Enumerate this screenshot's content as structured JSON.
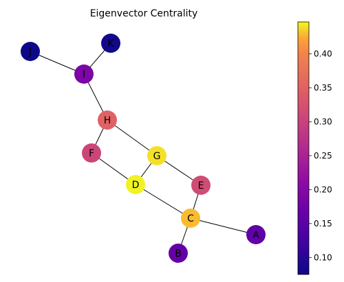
{
  "chart_data": {
    "type": "network",
    "title": "Eigenvector Centrality",
    "nodes": [
      {
        "id": "A",
        "centrality": 0.155
      },
      {
        "id": "B",
        "centrality": 0.16
      },
      {
        "id": "C",
        "centrality": 0.43
      },
      {
        "id": "D",
        "centrality": 0.445
      },
      {
        "id": "E",
        "centrality": 0.315
      },
      {
        "id": "F",
        "centrality": 0.305
      },
      {
        "id": "G",
        "centrality": 0.44
      },
      {
        "id": "H",
        "centrality": 0.35
      },
      {
        "id": "I",
        "centrality": 0.19
      },
      {
        "id": "J",
        "centrality": 0.075
      },
      {
        "id": "K",
        "centrality": 0.08
      }
    ],
    "edges": [
      [
        "J",
        "I"
      ],
      [
        "K",
        "I"
      ],
      [
        "I",
        "H"
      ],
      [
        "H",
        "F"
      ],
      [
        "H",
        "G"
      ],
      [
        "F",
        "D"
      ],
      [
        "G",
        "D"
      ],
      [
        "G",
        "E"
      ],
      [
        "D",
        "C"
      ],
      [
        "E",
        "C"
      ],
      [
        "C",
        "A"
      ],
      [
        "C",
        "B"
      ]
    ],
    "colorbar": {
      "colormap": "plasma",
      "range": [
        0.075,
        0.447
      ],
      "ticks": [
        "0.10",
        "0.15",
        "0.20",
        "0.25",
        "0.30",
        "0.35",
        "0.40"
      ],
      "tick_values": [
        0.1,
        0.15,
        0.2,
        0.25,
        0.3,
        0.35,
        0.4
      ]
    }
  }
}
